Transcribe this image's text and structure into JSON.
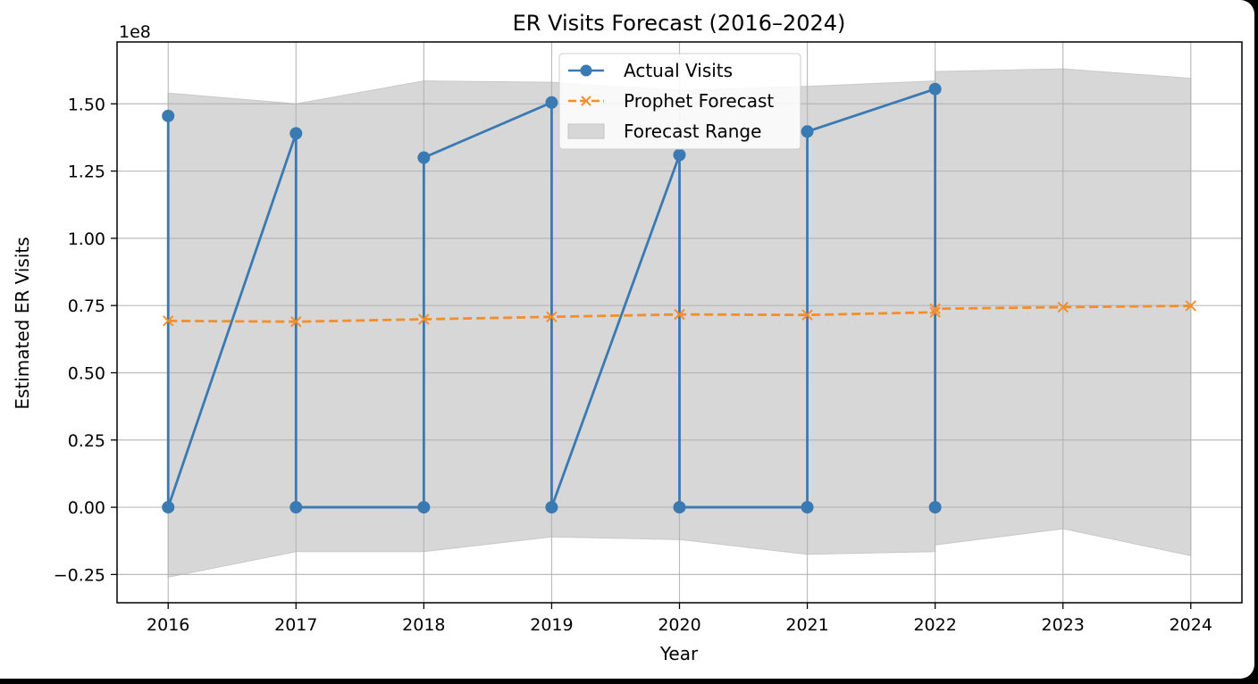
{
  "chart_data": {
    "type": "line",
    "title": "ER Visits Forecast (2016–2024)",
    "xlabel": "Year",
    "ylabel": "Estimated ER Visits",
    "y_scale_label": "1e8",
    "xlim": [
      2015.6,
      2024.4
    ],
    "ylim": [
      -0.355,
      1.73
    ],
    "x_ticks": [
      2016,
      2017,
      2018,
      2019,
      2020,
      2021,
      2022,
      2023,
      2024
    ],
    "x_tick_labels": [
      "2016",
      "2017",
      "2018",
      "2019",
      "2020",
      "2021",
      "2022",
      "2023",
      "2024"
    ],
    "y_ticks": [
      -0.25,
      0,
      0.25,
      0.5,
      0.75,
      1.0,
      1.25,
      1.5
    ],
    "y_tick_labels": [
      "−0.25",
      "0.00",
      "0.25",
      "0.50",
      "0.75",
      "1.00",
      "1.25",
      "1.50"
    ],
    "grid": true,
    "legend_position": "top-center",
    "series": [
      {
        "name": "Actual Visits",
        "style": "solid line with circle markers",
        "color": "#3a7ab3",
        "x": [
          2016,
          2016,
          2017,
          2017,
          2018,
          2018,
          2019,
          2019,
          2020,
          2020,
          2021,
          2021,
          2022,
          2022
        ],
        "y": [
          1.455,
          0.0,
          1.39,
          0.0,
          0.0,
          1.3,
          1.505,
          0.0,
          1.31,
          0.0,
          0.0,
          1.397,
          1.555,
          0.0
        ]
      },
      {
        "name": "Prophet Forecast",
        "style": "dashed line with x markers",
        "color": "#f28e2b",
        "x": [
          2016,
          2017,
          2018,
          2019,
          2020,
          2021,
          2022,
          2022,
          2023,
          2024
        ],
        "y": [
          0.693,
          0.69,
          0.699,
          0.708,
          0.717,
          0.715,
          0.725,
          0.738,
          0.744,
          0.749
        ]
      },
      {
        "name": "Forecast Range",
        "style": "filled band",
        "color": "#d7d7d7",
        "x": [
          2016,
          2017,
          2018,
          2019,
          2020,
          2021,
          2022,
          2022,
          2023,
          2024
        ],
        "upper": [
          1.54,
          1.5,
          1.585,
          1.58,
          1.55,
          1.565,
          1.585,
          1.62,
          1.63,
          1.595
        ],
        "lower": [
          -0.26,
          -0.165,
          -0.165,
          -0.11,
          -0.12,
          -0.175,
          -0.165,
          -0.14,
          -0.08,
          -0.18
        ]
      }
    ]
  }
}
